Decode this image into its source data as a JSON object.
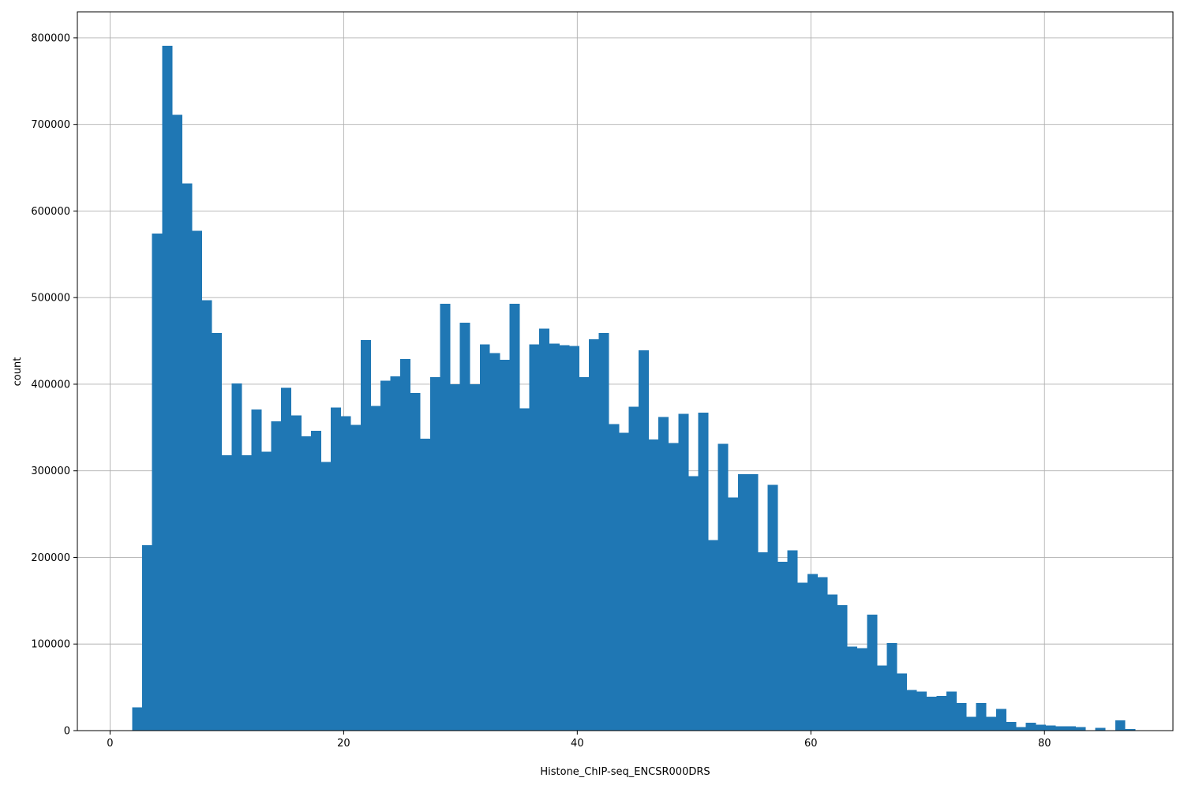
{
  "chart_data": {
    "type": "histogram",
    "xlabel": "Histone_ChIP-seq_ENCSR000DRS",
    "ylabel": "count",
    "xlim": [
      -2.8,
      91.0
    ],
    "ylim": [
      0,
      830000
    ],
    "grid": true,
    "bar_color": "#1f77b4",
    "bin_start": 1.9,
    "bin_width": 0.85,
    "x_ticks": [
      0,
      20,
      40,
      60,
      80
    ],
    "y_ticks": [
      0,
      100000,
      200000,
      300000,
      400000,
      500000,
      600000,
      700000,
      800000
    ],
    "counts": [
      27000,
      214000,
      574000,
      791000,
      711000,
      632000,
      577000,
      497000,
      459000,
      318000,
      401000,
      318000,
      371000,
      322000,
      357000,
      396000,
      364000,
      340000,
      346000,
      310000,
      373000,
      363000,
      353000,
      451000,
      375000,
      404000,
      409000,
      429000,
      390000,
      337000,
      408000,
      493000,
      400000,
      471000,
      400000,
      446000,
      436000,
      428000,
      493000,
      372000,
      446000,
      464000,
      447000,
      445000,
      444000,
      408000,
      452000,
      459000,
      354000,
      344000,
      374000,
      439000,
      336000,
      362000,
      332000,
      366000,
      294000,
      367000,
      220000,
      331000,
      269000,
      296000,
      296000,
      206000,
      284000,
      195000,
      208000,
      171000,
      181000,
      177000,
      157000,
      145000,
      97000,
      95000,
      134000,
      75000,
      101000,
      66000,
      47000,
      45000,
      39000,
      40000,
      45000,
      32000,
      16000,
      32000,
      16000,
      25000,
      10000,
      4000,
      9000,
      7000,
      6000,
      5000,
      5000,
      4000,
      0,
      3000,
      0,
      12000,
      2000
    ]
  }
}
